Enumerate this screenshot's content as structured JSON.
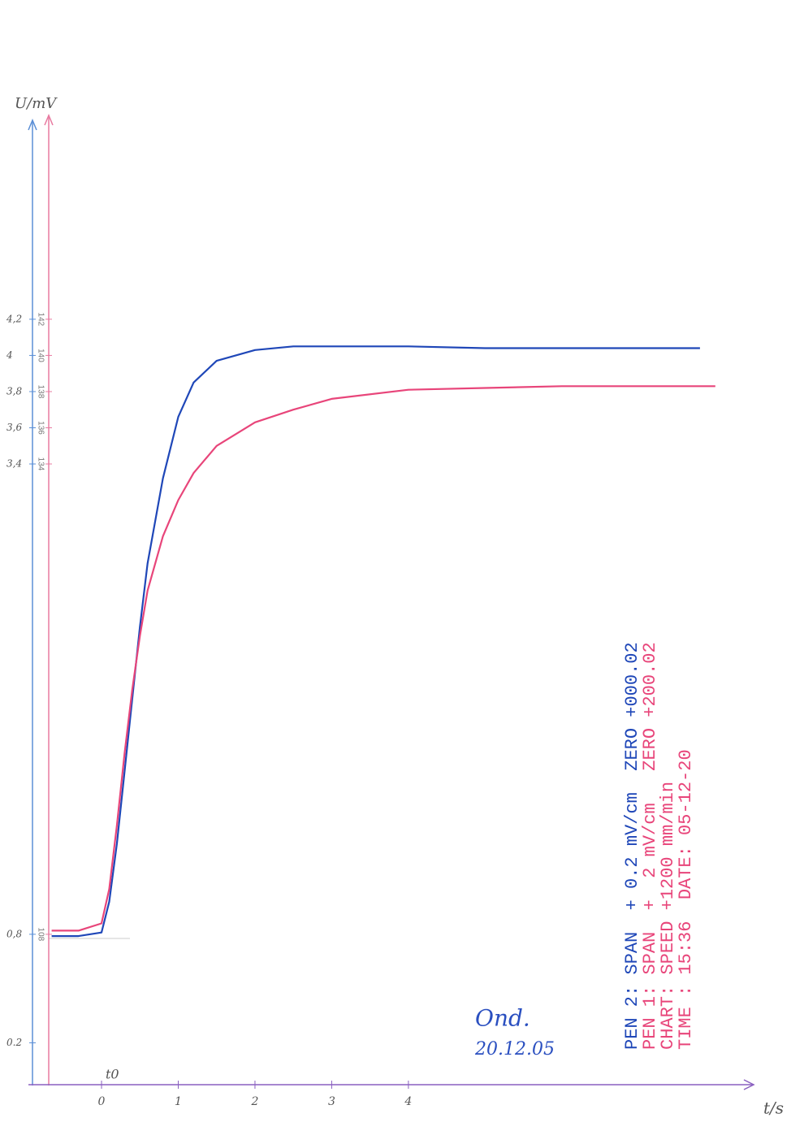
{
  "chart_data": {
    "type": "line",
    "xlabel": "t/s",
    "ylabel": "U/mV",
    "annotations": [
      "t0",
      "Ond.",
      "20.12.05",
      "CHART: SPEED +1200 mm/min",
      "TIME : 15:36  DATE: 05-12-20"
    ],
    "xlim": [
      -0.9,
      8.5
    ],
    "xticks": [
      0,
      1,
      2,
      3,
      4
    ],
    "ylim": [
      0,
      5.3
    ],
    "yticks": [
      0.2,
      {
        "value": 0.8,
        "label": "0,8"
      },
      {
        "value": 3.4,
        "label": "3,4"
      },
      {
        "value": 3.6,
        "label": "3,6"
      },
      {
        "value": 3.8,
        "label": "3,8"
      },
      4,
      {
        "value": 4.2,
        "label": "4,2"
      }
    ],
    "y2lim": [
      100,
      153
    ],
    "y2ticks": [
      108,
      134,
      136,
      138,
      140,
      142
    ],
    "grid": false,
    "series": [
      {
        "name": "PEN 2: SPAN  + 0.2 mV/cm  ZERO +000.02",
        "color": "#1f47b8",
        "x": [
          -0.65,
          -0.3,
          0,
          0.1,
          0.2,
          0.3,
          0.4,
          0.5,
          0.6,
          0.8,
          1,
          1.2,
          1.5,
          2,
          2.5,
          3,
          4,
          5,
          6,
          7,
          7.8
        ],
        "values": [
          0.79,
          0.79,
          0.81,
          0.98,
          1.3,
          1.7,
          2.1,
          2.5,
          2.85,
          3.32,
          3.66,
          3.85,
          3.97,
          4.03,
          4.05,
          4.05,
          4.05,
          4.04,
          4.04,
          4.04,
          4.04
        ]
      },
      {
        "name": "PEN 1: SPAN  +  2 mV/cm   ZERO +200.02",
        "color": "#e8457a",
        "axis": "y2",
        "x": [
          -0.65,
          -0.3,
          0,
          0.1,
          0.2,
          0.3,
          0.4,
          0.5,
          0.6,
          0.8,
          1,
          1.2,
          1.5,
          2,
          2.5,
          3,
          4,
          5,
          6,
          7,
          8
        ],
        "values": [
          108.2,
          108.2,
          108.6,
          110.5,
          114,
          118,
          121.5,
          124.5,
          127,
          130,
          132,
          133.5,
          135,
          136.3,
          137,
          137.6,
          138.1,
          138.2,
          138.3,
          138.3,
          138.3
        ]
      }
    ]
  }
}
